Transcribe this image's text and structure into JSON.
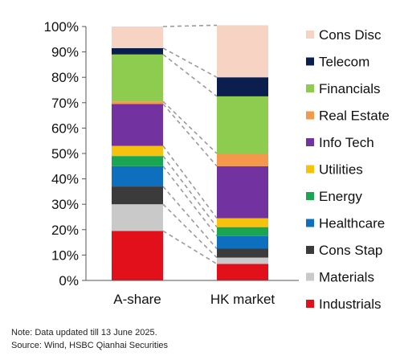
{
  "chart_data": {
    "type": "stacked-bar",
    "title": "",
    "xlabel": "",
    "ylabel": "",
    "ylim": [
      0,
      100
    ],
    "yticks": [
      "0%",
      "10%",
      "20%",
      "30%",
      "40%",
      "50%",
      "60%",
      "70%",
      "80%",
      "90%",
      "100%"
    ],
    "categories": [
      "A-share",
      "HK market"
    ],
    "grid": false,
    "legend_placement": "right",
    "series": [
      {
        "name": "Industrials",
        "color": "#e2101a",
        "values": [
          19.5,
          6.5
        ]
      },
      {
        "name": "Materials",
        "color": "#c9c9c9",
        "values": [
          10.5,
          2.5
        ]
      },
      {
        "name": "Cons Stap",
        "color": "#3b3b3b",
        "values": [
          7.0,
          3.5
        ]
      },
      {
        "name": "Healthcare",
        "color": "#0f6fbf",
        "values": [
          8.0,
          5.0
        ]
      },
      {
        "name": "Energy",
        "color": "#19a552",
        "values": [
          4.0,
          3.5
        ]
      },
      {
        "name": "Utilities",
        "color": "#f7c20d",
        "values": [
          4.0,
          3.5
        ]
      },
      {
        "name": "Info Tech",
        "color": "#7232a0",
        "values": [
          16.5,
          20.5
        ]
      },
      {
        "name": "Real Estate",
        "color": "#f4994c",
        "values": [
          1.0,
          5.0
        ]
      },
      {
        "name": "Financials",
        "color": "#8dcc4e",
        "values": [
          18.5,
          22.5
        ]
      },
      {
        "name": "Telecom",
        "color": "#0b1f4f",
        "values": [
          2.5,
          7.5
        ]
      },
      {
        "name": "Cons Disc",
        "color": "#f6d3c3",
        "values": [
          8.5,
          20.5
        ]
      }
    ]
  },
  "notes": {
    "note": "Note: Data updated till 13 June 2025.",
    "source": "Source: Wind, HSBC Qianhai Securities"
  }
}
